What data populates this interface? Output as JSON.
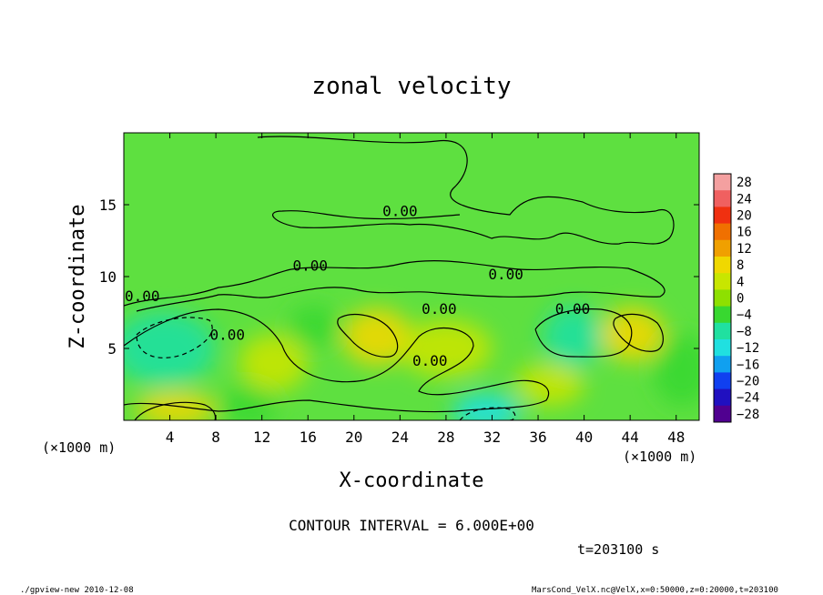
{
  "chart_data": {
    "type": "heatmap",
    "title": "zonal velocity",
    "xlabel": "X-coordinate",
    "ylabel": "Z-coordinate",
    "x_unit": "(×1000 m)",
    "y_unit": "(×1000 m)",
    "xlim": [
      0,
      50
    ],
    "ylim": [
      0,
      20
    ],
    "x_ticks": [
      "4",
      "8",
      "12",
      "16",
      "20",
      "24",
      "28",
      "32",
      "36",
      "40",
      "44",
      "48"
    ],
    "x_tick_values": [
      4,
      8,
      12,
      16,
      20,
      24,
      28,
      32,
      36,
      40,
      44,
      48
    ],
    "y_ticks": [
      "5",
      "10",
      "15"
    ],
    "y_tick_values": [
      5,
      10,
      15
    ],
    "colorbar": {
      "labels": [
        "28",
        "24",
        "20",
        "16",
        "12",
        "8",
        "4",
        "0",
        "−4",
        "−8",
        "−12",
        "−16",
        "−20",
        "−24",
        "−28"
      ],
      "values": [
        28,
        24,
        20,
        16,
        12,
        8,
        4,
        0,
        -4,
        -8,
        -12,
        -16,
        -20,
        -24,
        -28
      ],
      "colors": [
        "#f4a0a0",
        "#f06060",
        "#f03010",
        "#f07000",
        "#f0a000",
        "#f0d800",
        "#c8e600",
        "#8ee000",
        "#38d830",
        "#20e0a0",
        "#20e0e0",
        "#10a0f0",
        "#1040f0",
        "#2010c0",
        "#500090"
      ]
    },
    "contour_labels": [
      {
        "text": "0.00",
        "x": 24.0,
        "z": 14.2
      },
      {
        "text": "0.00",
        "x": 16.2,
        "z": 10.4
      },
      {
        "text": "0.00",
        "x": 33.2,
        "z": 9.8
      },
      {
        "text": "0.00",
        "x": 1.6,
        "z": 8.3
      },
      {
        "text": "0.00",
        "x": 27.4,
        "z": 7.4
      },
      {
        "text": "0.00",
        "x": 39.0,
        "z": 7.4
      },
      {
        "text": "0.00",
        "x": 9.0,
        "z": 5.6
      },
      {
        "text": "0.00",
        "x": 26.6,
        "z": 3.8
      }
    ],
    "blobs": [
      {
        "x": 3.5,
        "z": 5.0,
        "rx": 4.5,
        "rz": 2.6,
        "v": -9
      },
      {
        "x": 22.0,
        "z": 5.8,
        "rx": 3.0,
        "rz": 2.0,
        "v": 9
      },
      {
        "x": 44.2,
        "z": 6.0,
        "rx": 2.8,
        "rz": 1.9,
        "v": 9
      },
      {
        "x": 39.0,
        "z": 5.8,
        "rx": 2.6,
        "rz": 2.2,
        "v": -8
      },
      {
        "x": 31.5,
        "z": 0.6,
        "rx": 3.0,
        "rz": 1.3,
        "v": -12
      },
      {
        "x": 10.8,
        "z": 1.0,
        "rx": 2.5,
        "rz": 1.4,
        "v": -6
      },
      {
        "x": 16.5,
        "z": 6.5,
        "rx": 2.2,
        "rz": 1.5,
        "v": -6
      },
      {
        "x": 4.5,
        "z": 0.8,
        "rx": 3.5,
        "rz": 1.2,
        "v": 7
      },
      {
        "x": 13.0,
        "z": 4.0,
        "rx": 3.0,
        "rz": 2.0,
        "v": 4
      },
      {
        "x": 28.0,
        "z": 5.0,
        "rx": 4.0,
        "rz": 2.0,
        "v": 3
      },
      {
        "x": 48.5,
        "z": 3.5,
        "rx": 2.5,
        "rz": 2.5,
        "v": -4
      },
      {
        "x": 37.0,
        "z": 2.5,
        "rx": 3.0,
        "rz": 1.5,
        "v": 4
      }
    ],
    "contour_interval_text": "CONTOUR INTERVAL = 6.000E+00",
    "time_text": "t=203100 s",
    "footer_left": "./gpview-new  2010-12-08",
    "footer_right": "MarsCond_VelX.nc@VelX,x=0:50000,z=0:20000,t=203100",
    "grid": false
  }
}
